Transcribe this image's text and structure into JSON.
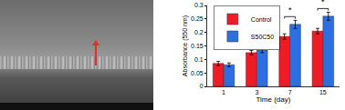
{
  "chart_data": {
    "type": "bar",
    "categories": [
      "1",
      "3",
      "7",
      "15"
    ],
    "series": [
      {
        "name": "Control",
        "color": "#ee1c24",
        "values": [
          0.085,
          0.125,
          0.185,
          0.205
        ],
        "errors": [
          0.008,
          0.008,
          0.01,
          0.01
        ]
      },
      {
        "name": "S50C50",
        "color": "#2e6fe0",
        "values": [
          0.08,
          0.135,
          0.23,
          0.26
        ],
        "errors": [
          0.007,
          0.01,
          0.015,
          0.015
        ]
      }
    ],
    "xlabel": "Time (day)",
    "ylabel": "Absorbance (550 nm)",
    "ylim": [
      0,
      0.3
    ],
    "yticks": [
      0,
      0.05,
      0.1,
      0.15,
      0.2,
      0.25,
      0.3
    ],
    "grid": false,
    "legend": "upper left",
    "annotations": [
      {
        "category": "7",
        "text": "*"
      },
      {
        "category": "15",
        "text": "*"
      }
    ]
  }
}
